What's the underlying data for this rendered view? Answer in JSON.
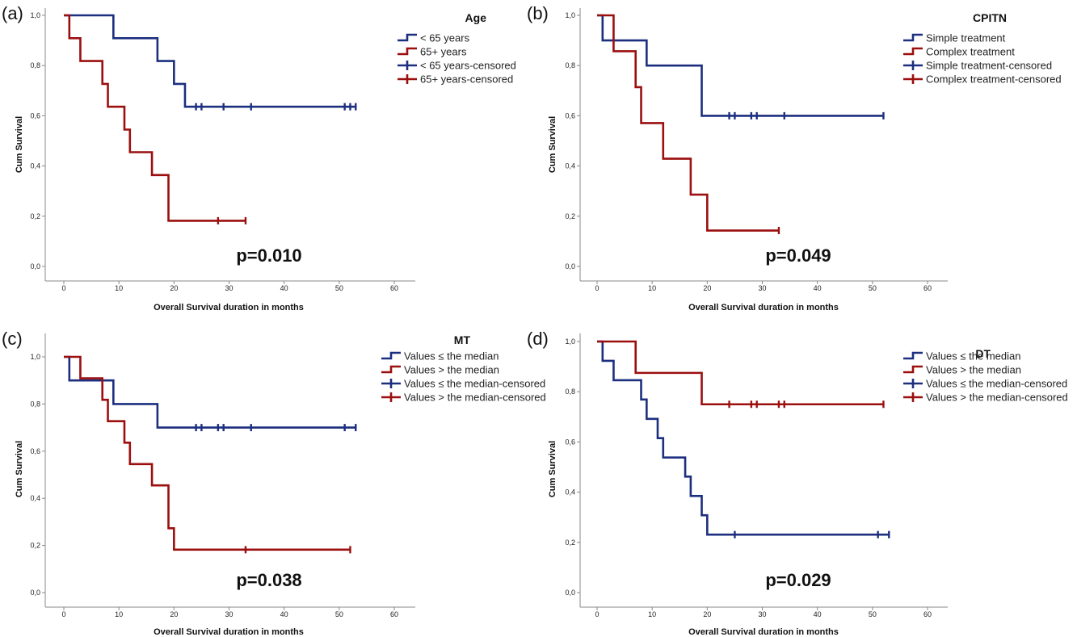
{
  "colors": {
    "blue": "#1c2f7f",
    "red": "#9c0f0f"
  },
  "chart_data": [
    {
      "type": "line",
      "panel_label": "(a)",
      "legend_title": "Age",
      "xlabel": "Overall Survival duration in months",
      "ylabel": "Cum Survival",
      "xlim": [
        0,
        60
      ],
      "ylim": [
        0,
        1
      ],
      "x_ticks": [
        "0",
        "10",
        "20",
        "30",
        "40",
        "50",
        "60"
      ],
      "y_ticks": [
        "0,0",
        "0,2",
        "0,4",
        "0,6",
        "0,8",
        "1,0"
      ],
      "p_value": "p=0.010",
      "legend": [
        "< 65 years",
        "65+ years",
        "< 65 years-censored",
        "65+ years-censored"
      ],
      "series": [
        {
          "name": "< 65 years",
          "color": "blue",
          "steps": [
            [
              0,
              1.0
            ],
            [
              9,
              0.909
            ],
            [
              17,
              0.818
            ],
            [
              20,
              0.727
            ],
            [
              22,
              0.636
            ]
          ],
          "end_x": 53,
          "censored": [
            24,
            25,
            29,
            34,
            51,
            52,
            53
          ]
        },
        {
          "name": "65+ years",
          "color": "red",
          "steps": [
            [
              0,
              1.0
            ],
            [
              1,
              0.909
            ],
            [
              3,
              0.818
            ],
            [
              7,
              0.727
            ],
            [
              8,
              0.636
            ],
            [
              11,
              0.545
            ],
            [
              12,
              0.455
            ],
            [
              16,
              0.364
            ],
            [
              19,
              0.182
            ]
          ],
          "end_x": 33,
          "censored": [
            28,
            33
          ]
        }
      ]
    },
    {
      "type": "line",
      "panel_label": "(b)",
      "legend_title": "CPITN",
      "xlabel": "Overall Survival duration in months",
      "ylabel": "Cum Survival",
      "xlim": [
        0,
        60
      ],
      "ylim": [
        0,
        1
      ],
      "x_ticks": [
        "0",
        "10",
        "20",
        "30",
        "40",
        "50",
        "60"
      ],
      "y_ticks": [
        "0,0",
        "0,2",
        "0,4",
        "0,6",
        "0,8",
        "1,0"
      ],
      "p_value": "p=0.049",
      "legend": [
        "Simple treatment",
        "Complex treatment",
        "Simple treatment-censored",
        "Complex treatment-censored"
      ],
      "series": [
        {
          "name": "Simple treatment",
          "color": "blue",
          "steps": [
            [
              0,
              1.0
            ],
            [
              1,
              0.9
            ],
            [
              9,
              0.8
            ],
            [
              19,
              0.6
            ]
          ],
          "end_x": 52,
          "censored": [
            24,
            25,
            28,
            29,
            34,
            52
          ]
        },
        {
          "name": "Complex treatment",
          "color": "red",
          "steps": [
            [
              0,
              1.0
            ],
            [
              3,
              0.857
            ],
            [
              7,
              0.714
            ],
            [
              8,
              0.571
            ],
            [
              12,
              0.429
            ],
            [
              17,
              0.286
            ],
            [
              20,
              0.143
            ]
          ],
          "end_x": 33,
          "censored": [
            33
          ]
        }
      ]
    },
    {
      "type": "line",
      "panel_label": "(c)",
      "legend_title": "MT",
      "xlabel": "Overall Survival duration in months",
      "ylabel": "Cum Survival",
      "xlim": [
        0,
        60
      ],
      "ylim": [
        0,
        1
      ],
      "x_ticks": [
        "0",
        "10",
        "20",
        "30",
        "40",
        "50",
        "60"
      ],
      "y_ticks": [
        "0,0",
        "0,2",
        "0,4",
        "0,6",
        "0,8",
        "1,0"
      ],
      "p_value": "p=0.038",
      "legend": [
        "Values ≤ the median",
        "Values > the median",
        "Values ≤ the median-censored",
        "Values > the median-censored"
      ],
      "series": [
        {
          "name": "Values ≤ the median",
          "color": "blue",
          "steps": [
            [
              0,
              1.0
            ],
            [
              1,
              0.9
            ],
            [
              9,
              0.8
            ],
            [
              17,
              0.7
            ]
          ],
          "end_x": 53,
          "censored": [
            24,
            25,
            28,
            29,
            34,
            51,
            53
          ]
        },
        {
          "name": "Values > the median",
          "color": "red",
          "steps": [
            [
              0,
              1.0
            ],
            [
              3,
              0.909
            ],
            [
              7,
              0.818
            ],
            [
              8,
              0.727
            ],
            [
              11,
              0.636
            ],
            [
              12,
              0.545
            ],
            [
              16,
              0.455
            ],
            [
              19,
              0.273
            ],
            [
              20,
              0.182
            ]
          ],
          "end_x": 52,
          "censored": [
            33,
            52
          ]
        }
      ]
    },
    {
      "type": "line",
      "panel_label": "(d)",
      "legend_title": "DT",
      "xlabel": "Overall Survival duration in months",
      "ylabel": "Cum Survival",
      "xlim": [
        0,
        60
      ],
      "ylim": [
        0,
        1
      ],
      "x_ticks": [
        "0",
        "10",
        "20",
        "30",
        "40",
        "50",
        "60"
      ],
      "y_ticks": [
        "0,0",
        "0,2",
        "0,4",
        "0,6",
        "0,8",
        "1,0"
      ],
      "p_value": "p=0.029",
      "legend": [
        "Values ≤ the median",
        "Values > the median",
        "Values ≤ the median-censored",
        "Values > the median-censored"
      ],
      "series": [
        {
          "name": "Values ≤ the median",
          "color": "blue",
          "steps": [
            [
              0,
              1.0
            ],
            [
              1,
              0.923
            ],
            [
              3,
              0.846
            ],
            [
              8,
              0.769
            ],
            [
              9,
              0.692
            ],
            [
              11,
              0.615
            ],
            [
              12,
              0.538
            ],
            [
              16,
              0.462
            ],
            [
              17,
              0.385
            ],
            [
              19,
              0.308
            ],
            [
              20,
              0.231
            ]
          ],
          "end_x": 53,
          "censored": [
            25,
            51,
            53
          ]
        },
        {
          "name": "Values > the median",
          "color": "red",
          "steps": [
            [
              0,
              1.0
            ],
            [
              7,
              0.875
            ],
            [
              19,
              0.75
            ]
          ],
          "end_x": 52,
          "censored": [
            24,
            28,
            29,
            33,
            34,
            52
          ]
        }
      ]
    }
  ]
}
